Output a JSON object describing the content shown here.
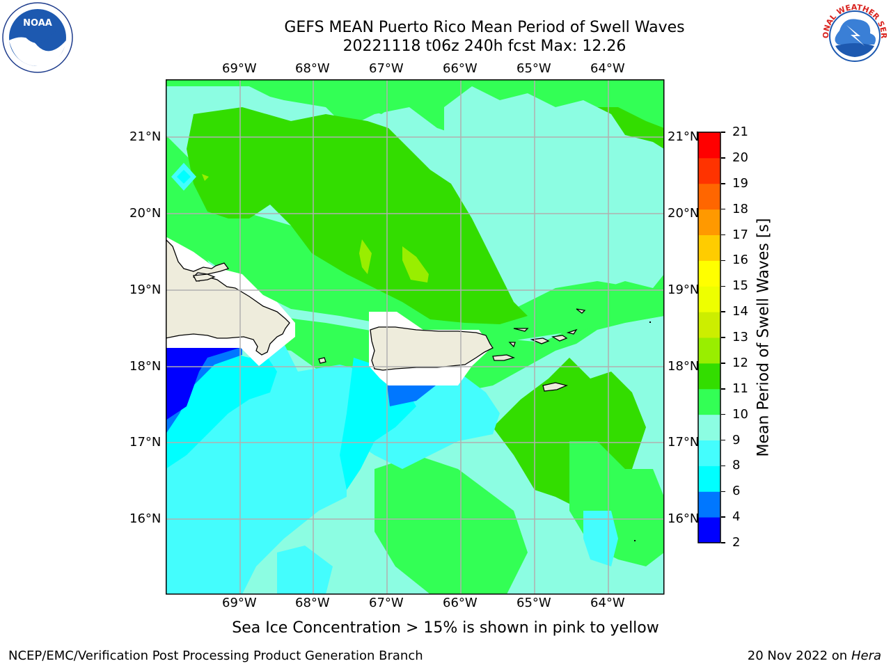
{
  "header": {
    "title_line1": "GEFS MEAN Puerto Rico Mean Period of Swell Waves",
    "title_line2": "20221118 t06z 240h fcst   Max: 12.26"
  },
  "map": {
    "lon_labels": [
      "69°W",
      "68°W",
      "67°W",
      "66°W",
      "65°W",
      "64°W"
    ],
    "lat_labels": [
      "21°N",
      "20°N",
      "19°N",
      "18°N",
      "17°N",
      "16°N"
    ],
    "land_color": "#eeecdc",
    "ocean_base_color": "#8cfde2"
  },
  "colorbar": {
    "label": "Mean Period of Swell Waves [s]",
    "ticks": [
      "2",
      "4",
      "6",
      "8",
      "9",
      "10",
      "11",
      "12",
      "13",
      "14",
      "15",
      "16",
      "17",
      "18",
      "19",
      "20",
      "21"
    ],
    "colors": [
      "#0000ff",
      "#0077ff",
      "#00ffff",
      "#44fdfd",
      "#8cfde2",
      "#33ff55",
      "#33dd00",
      "#99ee00",
      "#ccee00",
      "#eeff00",
      "#ffff00",
      "#ffcc00",
      "#ff9900",
      "#ff6600",
      "#ff3300",
      "#ff0000"
    ]
  },
  "footer": {
    "note": "Sea Ice Concentration > 15% is shown in pink to yellow",
    "credit": "NCEP/EMC/Verification Post Processing Product Generation Branch",
    "date": "20 Nov 2022 on",
    "host": "Hera"
  },
  "logos": {
    "left_text": "NOAA",
    "right_text": "NATIONAL WEATHER SERVICE"
  }
}
